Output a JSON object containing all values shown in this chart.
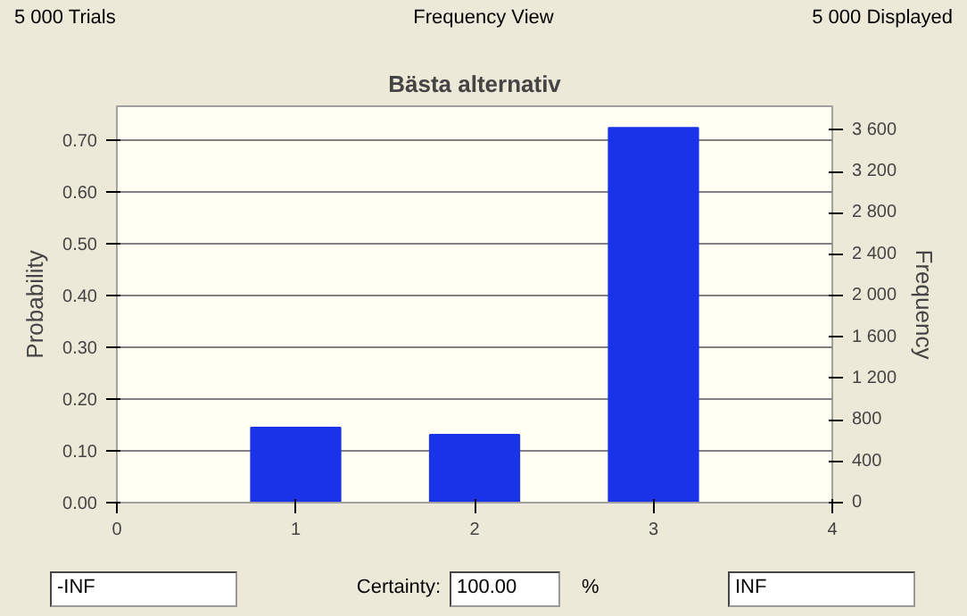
{
  "chart_data": {
    "type": "bar",
    "title": "Bästa alternativ",
    "ylabel": "Probability",
    "y2label": "Frequency",
    "x": [
      1,
      2,
      3
    ],
    "series": [
      {
        "color": "#1a33e8",
        "values": [
          0.145,
          0.131,
          0.724
        ]
      }
    ],
    "xlim": [
      0,
      4
    ],
    "xticks": [
      0,
      1,
      2,
      3,
      4
    ],
    "ylim": [
      0,
      0.766
    ],
    "yticks": [
      {
        "value": 0,
        "label": "0.00"
      },
      {
        "value": 0.1,
        "label": "0.10"
      },
      {
        "value": 0.2,
        "label": "0.20"
      },
      {
        "value": 0.3,
        "label": "0.30"
      },
      {
        "value": 0.4,
        "label": "0.40"
      },
      {
        "value": 0.5,
        "label": "0.50"
      },
      {
        "value": 0.6,
        "label": "0.60"
      },
      {
        "value": 0.7,
        "label": "0.70"
      }
    ],
    "y2lim": [
      0,
      3830
    ],
    "y2ticks": [
      0,
      400,
      800,
      {
        "value": 1200,
        "label": "1 200"
      },
      {
        "value": 1600,
        "label": "1 600"
      },
      {
        "value": 2000,
        "label": "2 000"
      },
      {
        "value": 2400,
        "label": "2 400"
      },
      {
        "value": 2800,
        "label": "2 800"
      },
      {
        "value": 3200,
        "label": "3 200"
      },
      {
        "value": 3600,
        "label": "3 600"
      }
    ],
    "grid": "y",
    "annotations": [
      "5 000 Trials",
      "Frequency View",
      "5 000 Displayed",
      "-INF",
      "Certainty:",
      "100.00",
      "%",
      "INF"
    ]
  }
}
